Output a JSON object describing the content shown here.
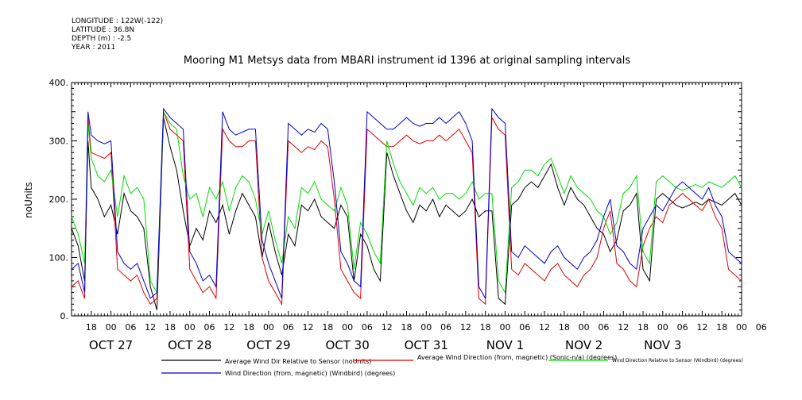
{
  "meta": {
    "longitude": "LONGITUDE : 122W(-122)",
    "latitude": "LATITUDE : 36.8N",
    "depth": "DEPTH (m) : -2.5",
    "year": "YEAR : 2011"
  },
  "chart_data": {
    "type": "line",
    "title": "Mooring M1 Metsys data from MBARI instrument id 1396 at original sampling intervals",
    "ylabel": "noUnits",
    "ylim": [
      0,
      400
    ],
    "yticks": [
      0,
      100,
      200,
      300,
      400
    ],
    "ytick_labels": [
      "0.",
      "100.",
      "200.",
      "300.",
      "400."
    ],
    "xlim_hours_from_oct26_12": [
      0,
      204
    ],
    "xtick_hour_labels": [
      "18",
      "00",
      "06",
      "12",
      "18",
      "00",
      "06",
      "12",
      "18",
      "00",
      "06",
      "12",
      "18",
      "00",
      "06",
      "12",
      "18",
      "00",
      "06",
      "12",
      "18",
      "00",
      "06",
      "12",
      "18",
      "00",
      "06",
      "12",
      "18",
      "00",
      "06",
      "12",
      "18",
      "00",
      "06"
    ],
    "date_labels": [
      "OCT 27",
      "OCT 28",
      "OCT 29",
      "OCT 30",
      "OCT 31",
      "NOV 1",
      "NOV 2",
      "NOV 3"
    ],
    "grid": false,
    "legend_position": "bottom",
    "series": [
      {
        "name": "Average Wind Dir Relative to Sensor (noUnits)",
        "color": "#000000",
        "x": [
          0,
          2,
          4,
          5,
          6,
          8,
          10,
          12,
          14,
          16,
          18,
          20,
          22,
          24,
          26,
          28,
          30,
          32,
          34,
          36,
          38,
          40,
          42,
          44,
          46,
          48,
          50,
          52,
          54,
          56,
          58,
          60,
          62,
          64,
          66,
          68,
          70,
          72,
          74,
          76,
          78,
          80,
          82,
          84,
          86,
          88,
          90,
          92,
          94,
          96,
          98,
          100,
          102,
          104,
          106,
          108,
          110,
          112,
          114,
          116,
          118,
          120,
          122,
          124,
          126,
          128,
          130,
          132,
          134,
          136,
          138,
          140,
          142,
          144,
          146,
          148,
          150,
          152,
          154,
          156,
          158,
          160,
          162,
          164,
          166,
          168,
          170,
          172,
          174,
          176,
          178,
          180,
          182,
          184,
          186,
          188,
          190,
          192,
          194,
          196,
          198,
          200,
          202,
          204
        ],
        "y": [
          150,
          120,
          60,
          300,
          220,
          200,
          170,
          190,
          140,
          210,
          180,
          170,
          150,
          50,
          10,
          340,
          290,
          250,
          180,
          120,
          150,
          130,
          180,
          160,
          190,
          140,
          180,
          210,
          190,
          170,
          100,
          160,
          110,
          70,
          140,
          120,
          190,
          180,
          200,
          170,
          160,
          150,
          190,
          170,
          60,
          140,
          120,
          80,
          60,
          280,
          240,
          210,
          180,
          160,
          190,
          180,
          200,
          170,
          190,
          180,
          170,
          180,
          200,
          170,
          180,
          180,
          30,
          20,
          190,
          200,
          220,
          230,
          220,
          240,
          260,
          220,
          190,
          220,
          200,
          190,
          170,
          150,
          140,
          110,
          130,
          180,
          190,
          210,
          80,
          60,
          200,
          210,
          200,
          190,
          185,
          190,
          195,
          190,
          200,
          195,
          190,
          200,
          210,
          190
        ]
      },
      {
        "name": "Average Wind Direction (from, magnetic) (Sonic-n/a) (degrees)",
        "color": "#e00000",
        "x": [
          0,
          2,
          4,
          5,
          6,
          8,
          10,
          12,
          14,
          16,
          18,
          20,
          22,
          24,
          26,
          28,
          30,
          32,
          34,
          36,
          38,
          40,
          42,
          44,
          46,
          48,
          50,
          52,
          54,
          56,
          58,
          60,
          62,
          64,
          66,
          68,
          70,
          72,
          74,
          76,
          78,
          80,
          82,
          84,
          86,
          88,
          90,
          92,
          94,
          96,
          98,
          100,
          102,
          104,
          106,
          108,
          110,
          112,
          114,
          116,
          118,
          120,
          122,
          124,
          126,
          128,
          130,
          132,
          134,
          136,
          138,
          140,
          142,
          144,
          146,
          148,
          150,
          152,
          154,
          156,
          158,
          160,
          162,
          164,
          166,
          168,
          170,
          172,
          174,
          176,
          178,
          180,
          182,
          184,
          186,
          188,
          190,
          192,
          194,
          196,
          198,
          200,
          202,
          204
        ],
        "y": [
          50,
          60,
          30,
          340,
          280,
          275,
          270,
          280,
          80,
          70,
          60,
          70,
          40,
          20,
          30,
          350,
          320,
          310,
          300,
          80,
          60,
          40,
          50,
          30,
          320,
          300,
          290,
          290,
          300,
          300,
          100,
          60,
          40,
          20,
          300,
          290,
          280,
          290,
          285,
          300,
          290,
          200,
          80,
          60,
          40,
          30,
          320,
          310,
          300,
          290,
          290,
          300,
          310,
          300,
          295,
          300,
          300,
          310,
          300,
          310,
          320,
          300,
          280,
          30,
          20,
          340,
          320,
          310,
          80,
          70,
          90,
          80,
          70,
          60,
          80,
          90,
          70,
          60,
          50,
          70,
          80,
          100,
          150,
          180,
          90,
          80,
          60,
          50,
          120,
          150,
          170,
          160,
          190,
          200,
          210,
          200,
          190,
          180,
          200,
          170,
          150,
          80,
          70,
          60
        ]
      },
      {
        "name": "Wind Direction Relative to Sensor (Windbird) (degrees)",
        "color": "#00dd00",
        "x": [
          0,
          2,
          4,
          5,
          6,
          8,
          10,
          12,
          14,
          16,
          18,
          20,
          22,
          24,
          26,
          28,
          30,
          32,
          34,
          36,
          38,
          40,
          42,
          44,
          46,
          48,
          50,
          52,
          54,
          56,
          58,
          60,
          62,
          64,
          66,
          68,
          70,
          72,
          74,
          76,
          78,
          80,
          82,
          84,
          86,
          88,
          90,
          92,
          94,
          96,
          98,
          100,
          102,
          104,
          106,
          108,
          110,
          112,
          114,
          116,
          118,
          120,
          122,
          124,
          126,
          128,
          130,
          132,
          134,
          136,
          138,
          140,
          142,
          144,
          146,
          148,
          150,
          152,
          154,
          156,
          158,
          160,
          162,
          164,
          166,
          168,
          170,
          172,
          174,
          176,
          178,
          180,
          182,
          184,
          186,
          188,
          190,
          192,
          194,
          196,
          198,
          200,
          202,
          204
        ],
        "y": [
          170,
          140,
          90,
          330,
          270,
          240,
          230,
          250,
          170,
          240,
          210,
          220,
          200,
          60,
          40,
          350,
          330,
          320,
          240,
          200,
          210,
          170,
          220,
          200,
          230,
          180,
          220,
          240,
          230,
          200,
          140,
          180,
          130,
          90,
          170,
          150,
          220,
          210,
          230,
          200,
          190,
          180,
          220,
          190,
          80,
          160,
          140,
          110,
          90,
          300,
          260,
          230,
          210,
          190,
          220,
          210,
          220,
          200,
          210,
          210,
          200,
          210,
          230,
          200,
          210,
          210,
          60,
          40,
          220,
          230,
          250,
          250,
          240,
          260,
          270,
          240,
          210,
          240,
          220,
          210,
          200,
          180,
          170,
          140,
          160,
          210,
          220,
          240,
          110,
          90,
          230,
          240,
          230,
          220,
          215,
          220,
          225,
          220,
          230,
          225,
          220,
          230,
          240,
          220
        ]
      },
      {
        "name": "Wind Direction (from, magnetic) (Windbird) (degrees)",
        "color": "#0000d0",
        "x": [
          0,
          2,
          4,
          5,
          6,
          8,
          10,
          12,
          14,
          16,
          18,
          20,
          22,
          24,
          26,
          28,
          30,
          32,
          34,
          36,
          38,
          40,
          42,
          44,
          46,
          48,
          50,
          52,
          54,
          56,
          58,
          60,
          62,
          64,
          66,
          68,
          70,
          72,
          74,
          76,
          78,
          80,
          82,
          84,
          86,
          88,
          90,
          92,
          94,
          96,
          98,
          100,
          102,
          104,
          106,
          108,
          110,
          112,
          114,
          116,
          118,
          120,
          122,
          124,
          126,
          128,
          130,
          132,
          134,
          136,
          138,
          140,
          142,
          144,
          146,
          148,
          150,
          152,
          154,
          156,
          158,
          160,
          162,
          164,
          166,
          168,
          170,
          172,
          174,
          176,
          178,
          180,
          182,
          184,
          186,
          188,
          190,
          192,
          194,
          196,
          198,
          200,
          202,
          204
        ],
        "y": [
          80,
          90,
          40,
          350,
          310,
          300,
          295,
          300,
          110,
          90,
          80,
          90,
          60,
          30,
          40,
          355,
          340,
          330,
          320,
          110,
          90,
          60,
          70,
          50,
          350,
          320,
          310,
          315,
          320,
          320,
          130,
          90,
          60,
          30,
          330,
          320,
          310,
          320,
          315,
          330,
          320,
          230,
          110,
          90,
          60,
          50,
          350,
          340,
          330,
          320,
          320,
          330,
          340,
          330,
          325,
          330,
          330,
          340,
          330,
          340,
          350,
          330,
          300,
          50,
          30,
          355,
          340,
          330,
          110,
          100,
          120,
          110,
          100,
          90,
          110,
          120,
          100,
          90,
          80,
          100,
          110,
          130,
          170,
          200,
          120,
          110,
          90,
          80,
          150,
          170,
          190,
          180,
          200,
          220,
          230,
          220,
          210,
          200,
          220,
          190,
          170,
          110,
          100,
          90
        ]
      }
    ]
  }
}
